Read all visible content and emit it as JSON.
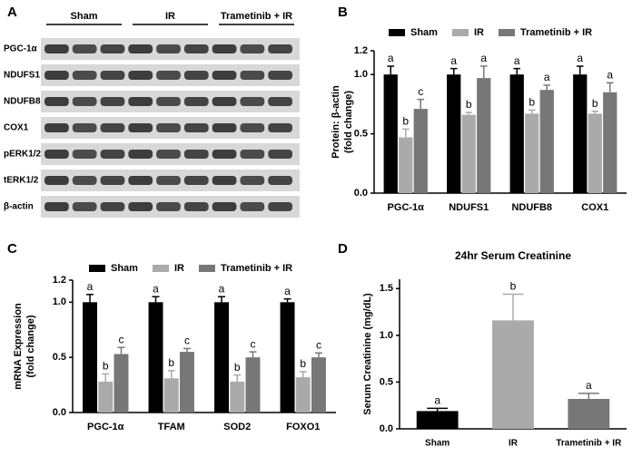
{
  "blot": {
    "panel_label": "A",
    "groups": [
      "Sham",
      "IR",
      "Trametinib + IR"
    ],
    "rows": [
      "PGC-1α",
      "NDUFS1",
      "NDUFB8",
      "COX1",
      "pERK1/2",
      "tERK1/2",
      "β-actin"
    ]
  },
  "chart_data": [
    {
      "type": "bar",
      "panel_label": "B",
      "ylabel": [
        "Protein: β-actin",
        "(fold change)"
      ],
      "categories": [
        "PGC-1α",
        "NDUFS1",
        "NDUFB8",
        "COX1"
      ],
      "series": [
        {
          "name": "Sham",
          "color": "#000000",
          "values": [
            1.0,
            1.0,
            1.0,
            1.0
          ],
          "errors": [
            0.07,
            0.05,
            0.05,
            0.07
          ],
          "letters": [
            "a",
            "a",
            "a",
            "a"
          ]
        },
        {
          "name": "IR",
          "color": "#aaaaaa",
          "values": [
            0.47,
            0.66,
            0.67,
            0.67
          ],
          "errors": [
            0.07,
            0.02,
            0.03,
            0.02
          ],
          "letters": [
            "b",
            "b",
            "b",
            "b"
          ]
        },
        {
          "name": "Trametinib + IR",
          "color": "#777777",
          "values": [
            0.71,
            0.97,
            0.87,
            0.85
          ],
          "errors": [
            0.08,
            0.1,
            0.04,
            0.08
          ],
          "letters": [
            "c",
            "a",
            "a",
            "a"
          ]
        }
      ],
      "ylim": [
        0,
        1.2
      ],
      "yticks": [
        {
          "value": 0,
          "label": "0.0"
        },
        0.5,
        {
          "value": 1,
          "label": "1.0"
        },
        1.2
      ]
    },
    {
      "type": "bar",
      "panel_label": "C",
      "ylabel": [
        "mRNA Expression",
        "(fold change)"
      ],
      "categories": [
        "PGC-1α",
        "TFAM",
        "SOD2",
        "FOXO1"
      ],
      "series": [
        {
          "name": "Sham",
          "color": "#000000",
          "values": [
            1.0,
            1.0,
            1.0,
            1.0
          ],
          "errors": [
            0.07,
            0.05,
            0.05,
            0.03
          ],
          "letters": [
            "a",
            "a",
            "a",
            "a"
          ]
        },
        {
          "name": "IR",
          "color": "#aaaaaa",
          "values": [
            0.28,
            0.31,
            0.28,
            0.32
          ],
          "errors": [
            0.07,
            0.07,
            0.06,
            0.05
          ],
          "letters": [
            "b",
            "b",
            "b",
            "b"
          ]
        },
        {
          "name": "Trametinib + IR",
          "color": "#777777",
          "values": [
            0.53,
            0.55,
            0.5,
            0.5
          ],
          "errors": [
            0.06,
            0.03,
            0.05,
            0.04
          ],
          "letters": [
            "c",
            "c",
            "c",
            "c"
          ]
        }
      ],
      "ylim": [
        0,
        1.2
      ],
      "yticks": [
        {
          "value": 0,
          "label": "0.0"
        },
        0.5,
        {
          "value": 1,
          "label": "1.0"
        },
        1.2
      ]
    },
    {
      "type": "bar",
      "panel_label": "D",
      "title": "24hr Serum Creatinine",
      "ylabel": [
        "Serum Creatinine (mg/dL)"
      ],
      "categories": [
        "Sham",
        "IR",
        "Trametinib + IR"
      ],
      "colors": [
        "#000000",
        "#aaaaaa",
        "#777777"
      ],
      "values": [
        0.19,
        1.16,
        0.32
      ],
      "errors": [
        0.03,
        0.28,
        0.06
      ],
      "letters": [
        "a",
        "b",
        "a"
      ],
      "ylim": [
        0,
        1.6
      ],
      "yticks": [
        {
          "value": 0,
          "label": "0.0"
        },
        0.5,
        {
          "value": 1,
          "label": "1.0"
        },
        1.5
      ]
    }
  ]
}
